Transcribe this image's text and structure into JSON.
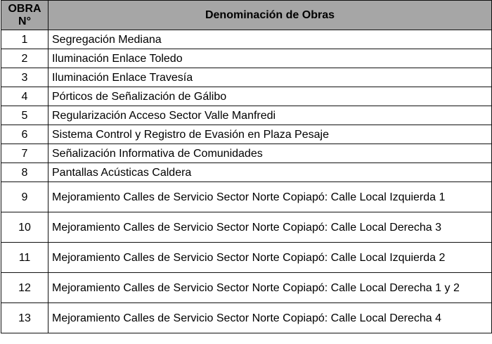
{
  "headers": {
    "number": "OBRA N°",
    "name": "Denominación de Obras"
  },
  "rows": [
    {
      "number": "1",
      "name": "Segregación Mediana"
    },
    {
      "number": "2",
      "name": "Iluminación Enlace Toledo"
    },
    {
      "number": "3",
      "name": "Iluminación Enlace Travesía"
    },
    {
      "number": "4",
      "name": "Pórticos de Señalización de Gálibo"
    },
    {
      "number": "5",
      "name": "Regularización Acceso Sector Valle Manfredi"
    },
    {
      "number": "6",
      "name": "Sistema Control y Registro de Evasión en Plaza Pesaje"
    },
    {
      "number": "7",
      "name": "Señalización Informativa de Comunidades"
    },
    {
      "number": "8",
      "name": "Pantallas Acústicas Caldera"
    },
    {
      "number": "9",
      "name": "Mejoramiento Calles de Servicio Sector Norte Copiapó: Calle Local Izquierda 1"
    },
    {
      "number": "10",
      "name": "Mejoramiento Calles de Servicio Sector Norte Copiapó: Calle Local Derecha 3"
    },
    {
      "number": "11",
      "name": "Mejoramiento Calles de Servicio Sector Norte Copiapó: Calle Local Izquierda 2"
    },
    {
      "number": "12",
      "name": "Mejoramiento Calles de Servicio Sector Norte Copiapó: Calle Local Derecha 1 y 2"
    },
    {
      "number": "13",
      "name": "Mejoramiento Calles de Servicio Sector Norte Copiapó: Calle Local Derecha 4"
    }
  ]
}
